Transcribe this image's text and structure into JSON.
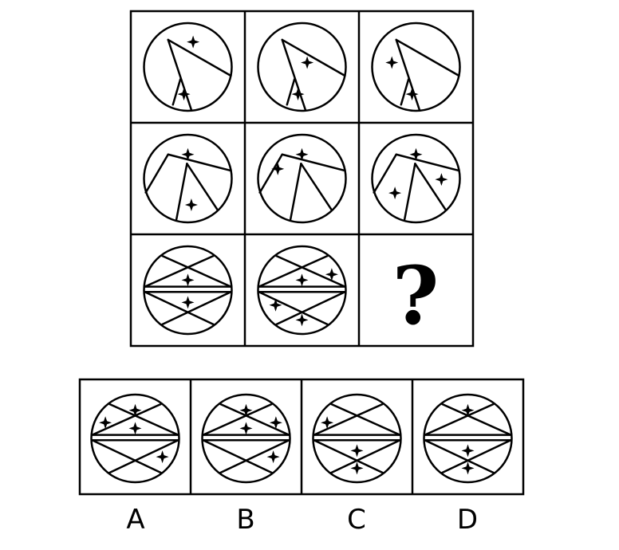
{
  "grid": {
    "question_mark": "?",
    "rows": [
      [
        {
          "pattern": "triangle",
          "stars": [
            "top",
            "inner"
          ]
        },
        {
          "pattern": "triangle",
          "stars": [
            "middle",
            "inner"
          ]
        },
        {
          "pattern": "triangle",
          "stars": [
            "left",
            "inner"
          ]
        }
      ],
      [
        {
          "pattern": "wedge",
          "stars": [
            "top",
            "bottom"
          ]
        },
        {
          "pattern": "wedge",
          "stars": [
            "top",
            "left"
          ]
        },
        {
          "pattern": "wedge",
          "stars": [
            "top",
            "right",
            "bottom-left"
          ]
        }
      ],
      [
        {
          "pattern": "diamond",
          "stars": [
            "center-top",
            "center-bottom"
          ]
        },
        {
          "pattern": "diamond",
          "stars": [
            "center-top",
            "top-right",
            "bottom-left",
            "bottom"
          ]
        },
        null
      ]
    ]
  },
  "options": [
    {
      "label": "A",
      "stars": [
        "top",
        "left",
        "center-top",
        "bottom-right"
      ]
    },
    {
      "label": "B",
      "stars": [
        "top",
        "right",
        "center-top",
        "bottom-right"
      ]
    },
    {
      "label": "C",
      "stars": [
        "left",
        "center-bottom",
        "bottom"
      ]
    },
    {
      "label": "D",
      "stars": [
        "top",
        "center-bottom",
        "bottom"
      ]
    }
  ]
}
